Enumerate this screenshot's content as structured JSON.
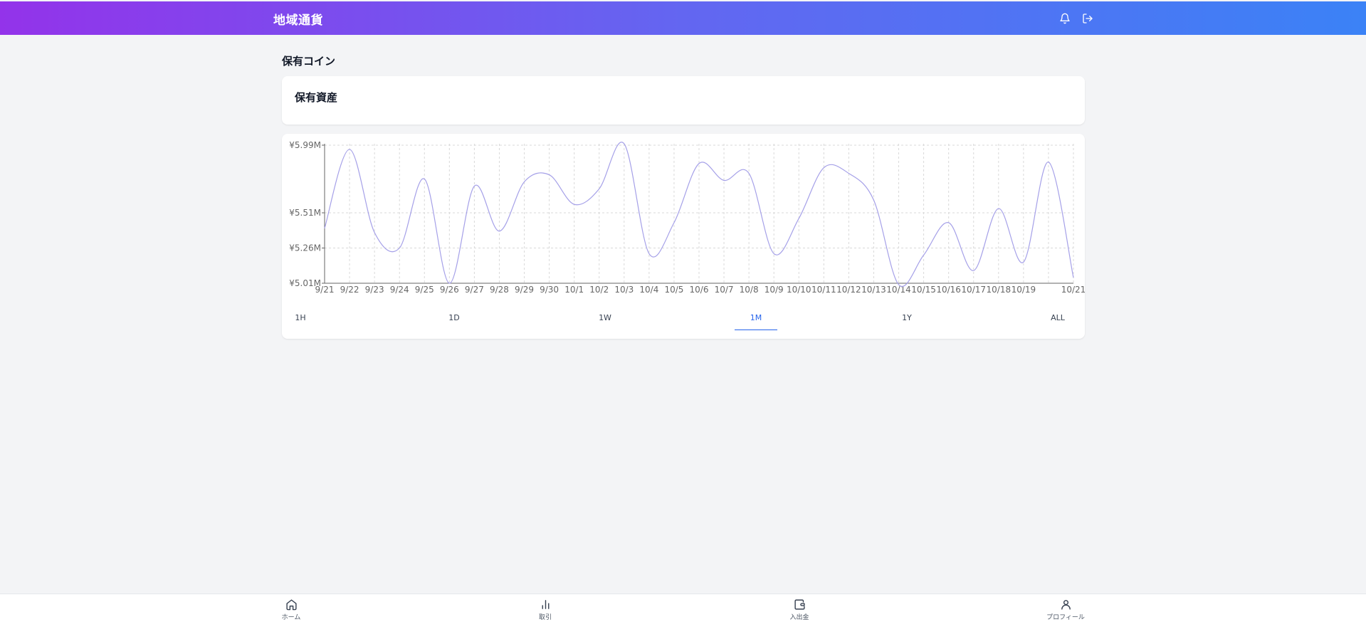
{
  "header": {
    "title": "地域通貨",
    "icons": [
      "bell-icon",
      "logout-icon"
    ]
  },
  "page": {
    "title": "保有コイン"
  },
  "asset_card": {
    "title": "保有資産"
  },
  "chart_data": {
    "type": "line",
    "x": [
      "9/21",
      "9/22",
      "9/23",
      "9/24",
      "9/25",
      "9/26",
      "9/27",
      "9/28",
      "9/29",
      "9/30",
      "10/1",
      "10/2",
      "10/3",
      "10/4",
      "10/5",
      "10/6",
      "10/7",
      "10/8",
      "10/9",
      "10/10",
      "10/11",
      "10/12",
      "10/13",
      "10/14",
      "10/15",
      "10/16",
      "10/17",
      "10/18",
      "10/19",
      "10/20",
      "10/21"
    ],
    "x_tick_labels": [
      "9/21",
      "9/22",
      "9/23",
      "9/24",
      "9/25",
      "9/26",
      "9/27",
      "9/28",
      "9/29",
      "9/30",
      "10/1",
      "10/2",
      "10/3",
      "10/4",
      "10/5",
      "10/6",
      "10/7",
      "10/8",
      "10/9",
      "10/10",
      "10/11",
      "10/12",
      "10/13",
      "10/14",
      "10/15",
      "10/16",
      "10/17",
      "10/18",
      "10/19",
      "",
      "10/21"
    ],
    "y": [
      5.4,
      5.96,
      5.37,
      5.26,
      5.75,
      5.01,
      5.7,
      5.38,
      5.73,
      5.78,
      5.57,
      5.68,
      6.0,
      5.22,
      5.44,
      5.86,
      5.74,
      5.79,
      5.22,
      5.47,
      5.83,
      5.79,
      5.6,
      5.0,
      5.21,
      5.44,
      5.1,
      5.54,
      5.16,
      5.87,
      5.05
    ],
    "y_ticks": [
      5.01,
      5.26,
      5.51,
      5.99
    ],
    "y_tick_labels": [
      "¥5.01M",
      "¥5.26M",
      "¥5.51M",
      "¥5.99M"
    ],
    "ylim": [
      5.01,
      5.99
    ],
    "grid": true,
    "line_color": "#a5a0e8"
  },
  "ranges": {
    "items": [
      "1H",
      "1D",
      "1W",
      "1M",
      "1Y",
      "ALL"
    ],
    "active": "1M"
  },
  "bottom_nav": {
    "home": "ホーム",
    "trade": "取引",
    "wallet": "入出金",
    "profile": "プロフィール"
  },
  "colors": {
    "header_start": "#9333ea",
    "header_end": "#3b82f6",
    "accent": "#2563eb"
  }
}
